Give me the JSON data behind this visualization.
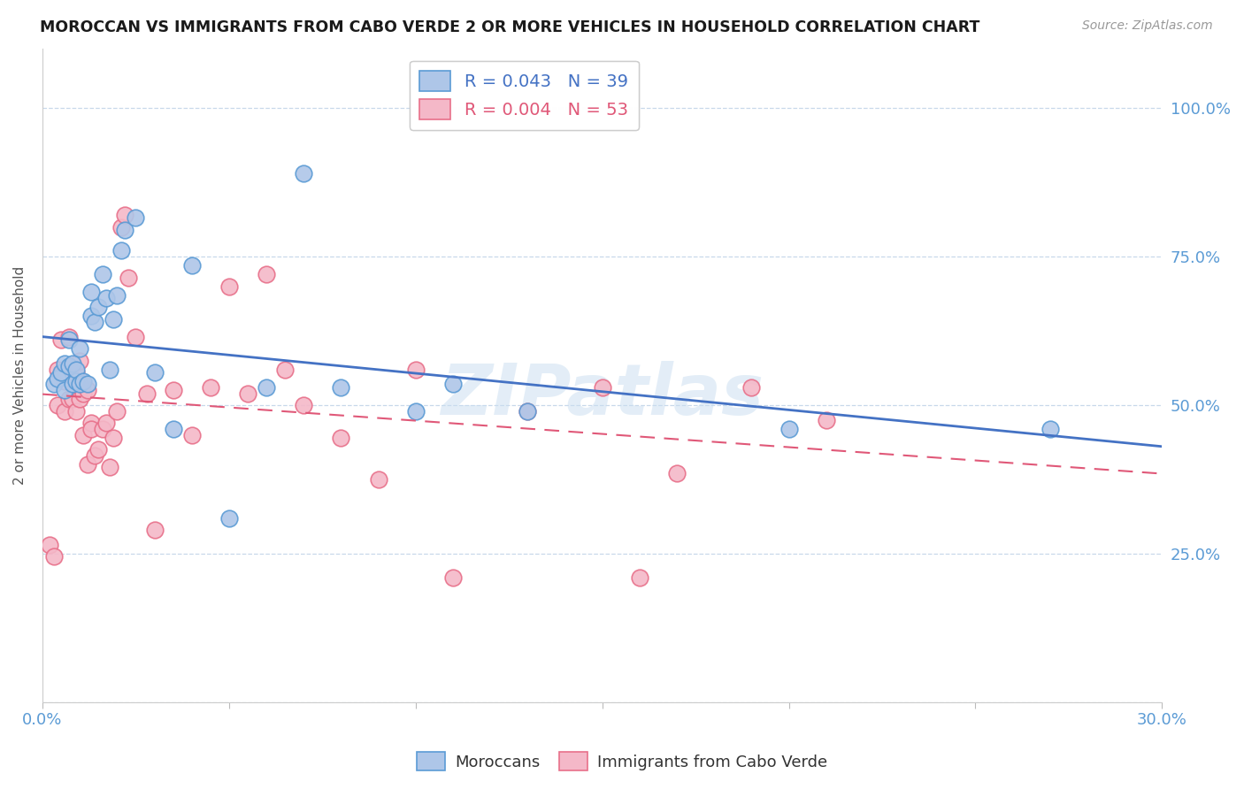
{
  "title": "MOROCCAN VS IMMIGRANTS FROM CABO VERDE 2 OR MORE VEHICLES IN HOUSEHOLD CORRELATION CHART",
  "source": "Source: ZipAtlas.com",
  "ylabel": "2 or more Vehicles in Household",
  "ytick_labels": [
    "",
    "25.0%",
    "50.0%",
    "75.0%",
    "100.0%"
  ],
  "ytick_values": [
    0.0,
    0.25,
    0.5,
    0.75,
    1.0
  ],
  "xmin": 0.0,
  "xmax": 0.3,
  "ymin": 0.0,
  "ymax": 1.1,
  "legend_blue_r": "R = 0.043",
  "legend_blue_n": "N = 39",
  "legend_pink_r": "R = 0.004",
  "legend_pink_n": "N = 53",
  "blue_face_color": "#aec6e8",
  "blue_edge_color": "#5b9bd5",
  "pink_face_color": "#f4b8c8",
  "pink_edge_color": "#e8708a",
  "blue_line_color": "#4472c4",
  "pink_line_color": "#e05878",
  "watermark": "ZIPatlas",
  "scatter_blue_x": [
    0.003,
    0.004,
    0.005,
    0.006,
    0.006,
    0.007,
    0.007,
    0.008,
    0.008,
    0.009,
    0.009,
    0.01,
    0.01,
    0.011,
    0.012,
    0.013,
    0.013,
    0.014,
    0.015,
    0.016,
    0.017,
    0.018,
    0.019,
    0.02,
    0.021,
    0.022,
    0.025,
    0.03,
    0.035,
    0.04,
    0.05,
    0.06,
    0.07,
    0.08,
    0.1,
    0.11,
    0.13,
    0.2,
    0.27
  ],
  "scatter_blue_y": [
    0.535,
    0.545,
    0.555,
    0.525,
    0.57,
    0.565,
    0.61,
    0.535,
    0.57,
    0.54,
    0.56,
    0.535,
    0.595,
    0.54,
    0.535,
    0.65,
    0.69,
    0.64,
    0.665,
    0.72,
    0.68,
    0.56,
    0.645,
    0.685,
    0.76,
    0.795,
    0.815,
    0.555,
    0.46,
    0.735,
    0.31,
    0.53,
    0.89,
    0.53,
    0.49,
    0.535,
    0.49,
    0.46,
    0.46
  ],
  "scatter_pink_x": [
    0.002,
    0.003,
    0.004,
    0.004,
    0.005,
    0.005,
    0.006,
    0.006,
    0.007,
    0.007,
    0.008,
    0.008,
    0.009,
    0.009,
    0.01,
    0.01,
    0.011,
    0.011,
    0.012,
    0.012,
    0.013,
    0.013,
    0.014,
    0.015,
    0.016,
    0.017,
    0.018,
    0.019,
    0.02,
    0.021,
    0.022,
    0.023,
    0.025,
    0.028,
    0.03,
    0.035,
    0.04,
    0.045,
    0.05,
    0.055,
    0.06,
    0.065,
    0.07,
    0.08,
    0.09,
    0.1,
    0.11,
    0.13,
    0.15,
    0.16,
    0.17,
    0.19,
    0.21
  ],
  "scatter_pink_y": [
    0.265,
    0.245,
    0.56,
    0.5,
    0.55,
    0.61,
    0.49,
    0.54,
    0.51,
    0.615,
    0.51,
    0.545,
    0.49,
    0.555,
    0.51,
    0.575,
    0.52,
    0.45,
    0.525,
    0.4,
    0.47,
    0.46,
    0.415,
    0.425,
    0.46,
    0.47,
    0.395,
    0.445,
    0.49,
    0.8,
    0.82,
    0.715,
    0.615,
    0.52,
    0.29,
    0.525,
    0.45,
    0.53,
    0.7,
    0.52,
    0.72,
    0.56,
    0.5,
    0.445,
    0.375,
    0.56,
    0.21,
    0.49,
    0.53,
    0.21,
    0.385,
    0.53,
    0.475
  ]
}
